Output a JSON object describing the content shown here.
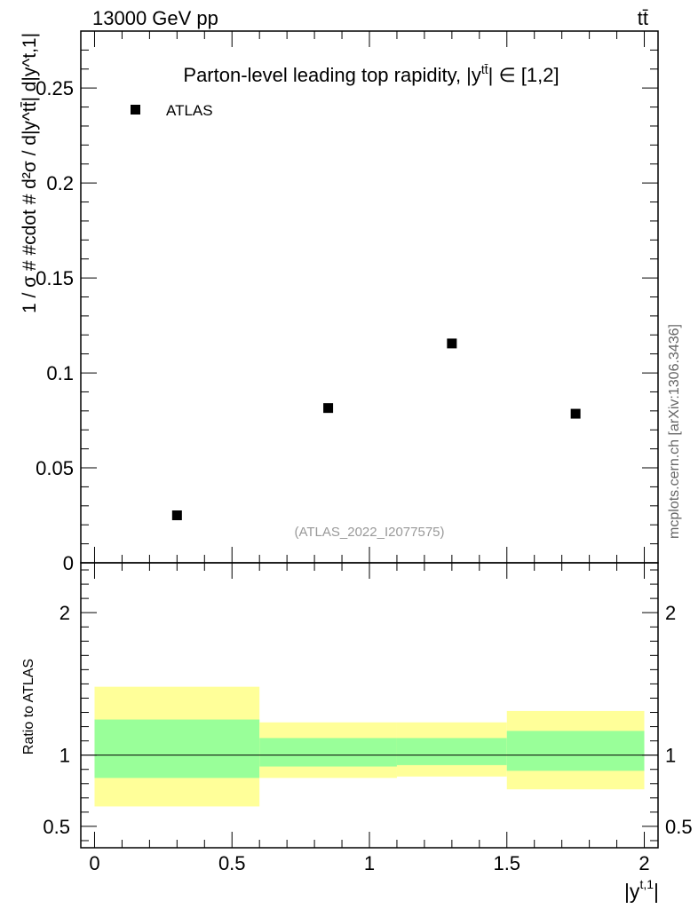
{
  "header": {
    "energy_label": "13000 GeV pp",
    "process_label": "tt̄"
  },
  "side_label": "mcplots.cern.ch [arXiv:1306.3436]",
  "chart_data": [
    {
      "type": "scatter",
      "title": "Parton-level leading top rapidity, |y",
      "title_sup": "tt̄",
      "title_tail": "| ∈ [1,2]",
      "ylabel": "1 / σ # #cdot # d²σ / d|y^tt̄| d|y^t,1|",
      "ylim": [
        0,
        0.28
      ],
      "xlim": [
        -0.05,
        2.05
      ],
      "y_ticks": [
        {
          "v": 0,
          "label": "0"
        },
        {
          "v": 0.05,
          "label": "0.05"
        },
        {
          "v": 0.1,
          "label": "0.1"
        },
        {
          "v": 0.15,
          "label": "0.15"
        },
        {
          "v": 0.2,
          "label": "0.2"
        },
        {
          "v": 0.25,
          "label": "0.25"
        }
      ],
      "legend": [
        {
          "name": "ATLAS",
          "marker": "square",
          "color": "#000000"
        }
      ],
      "legend_position": "top-left",
      "series": [
        {
          "name": "ATLAS",
          "points": [
            {
              "x": 0.3,
              "y": 0.025
            },
            {
              "x": 0.85,
              "y": 0.0815
            },
            {
              "x": 1.3,
              "y": 0.1155
            },
            {
              "x": 1.75,
              "y": 0.0785
            }
          ]
        }
      ],
      "watermark": "(ATLAS_2022_I2077575)"
    },
    {
      "type": "area",
      "ylabel": "Ratio to ATLAS",
      "xlabel": "|y",
      "xlabel_sup": "t,1",
      "xlabel_tail": "|",
      "ylim": [
        0.35,
        2.35
      ],
      "xlim": [
        -0.05,
        2.05
      ],
      "y_ticks": [
        {
          "v": 0.5,
          "label": "0.5"
        },
        {
          "v": 1,
          "label": "1"
        },
        {
          "v": 2,
          "label": "2"
        }
      ],
      "x_ticks": [
        {
          "v": 0,
          "label": "0"
        },
        {
          "v": 0.5,
          "label": "0.5"
        },
        {
          "v": 1,
          "label": "1"
        },
        {
          "v": 1.5,
          "label": "1.5"
        },
        {
          "v": 2,
          "label": "2"
        }
      ],
      "reference_line": 1,
      "bands": [
        {
          "x0": 0.0,
          "x1": 0.6,
          "inner": [
            0.84,
            1.25
          ],
          "outer": [
            0.64,
            1.48
          ]
        },
        {
          "x0": 0.6,
          "x1": 1.1,
          "inner": [
            0.92,
            1.12
          ],
          "outer": [
            0.84,
            1.23
          ]
        },
        {
          "x0": 1.1,
          "x1": 1.5,
          "inner": [
            0.93,
            1.12
          ],
          "outer": [
            0.85,
            1.23
          ]
        },
        {
          "x0": 1.5,
          "x1": 2.0,
          "inner": [
            0.89,
            1.17
          ],
          "outer": [
            0.76,
            1.31
          ]
        }
      ],
      "colors": {
        "inner": "#99ff99",
        "outer": "#ffff99"
      }
    }
  ]
}
